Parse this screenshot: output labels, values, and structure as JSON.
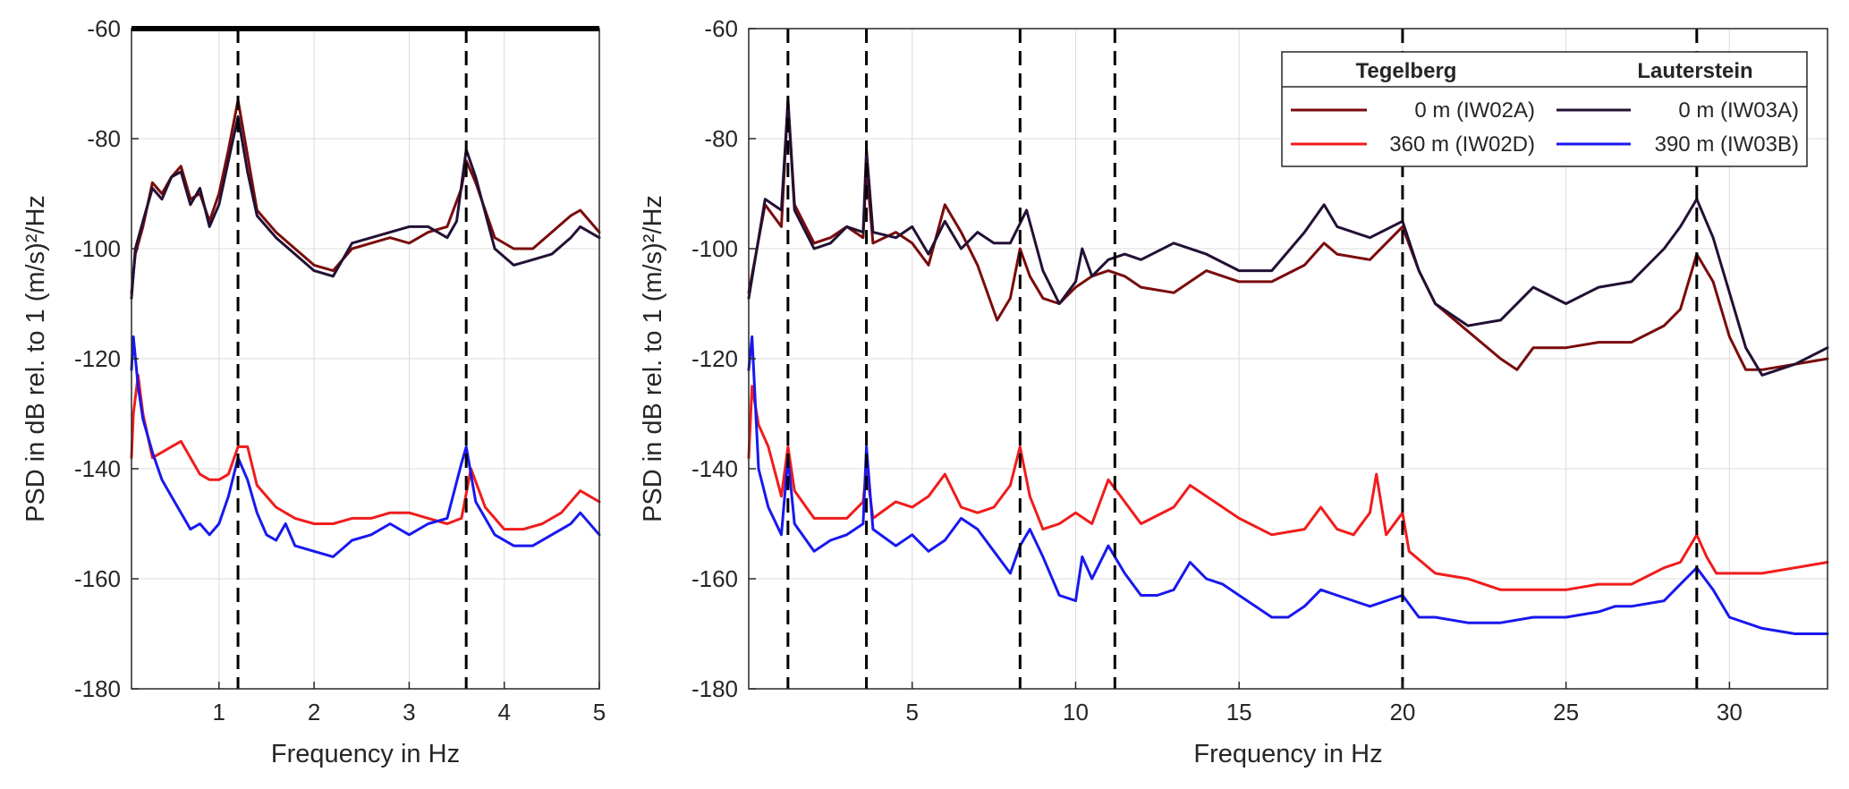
{
  "chart_data": [
    {
      "type": "line",
      "xlabel": "Frequency in Hz",
      "ylabel": "PSD in dB rel. to 1 (m/s)²/Hz",
      "xlim": [
        0.08,
        5
      ],
      "ylim": [
        -180,
        -60
      ],
      "xticks": [
        1,
        2,
        3,
        4,
        5
      ],
      "yticks": [
        -180,
        -160,
        -140,
        -120,
        -100,
        -80,
        -60
      ],
      "grid": true,
      "vlines": [
        1.2,
        3.6
      ],
      "series": [
        {
          "key": "IW02A",
          "color": "#7a0c0c",
          "x": [
            0.08,
            0.12,
            0.2,
            0.3,
            0.4,
            0.5,
            0.6,
            0.7,
            0.8,
            0.9,
            1.0,
            1.1,
            1.2,
            1.3,
            1.4,
            1.6,
            1.8,
            2.0,
            2.2,
            2.4,
            2.6,
            2.8,
            3.0,
            3.2,
            3.4,
            3.55,
            3.6,
            3.7,
            3.9,
            4.1,
            4.3,
            4.5,
            4.7,
            4.8,
            5.0
          ],
          "y": [
            -108,
            -101,
            -96,
            -88,
            -90,
            -87,
            -85,
            -91,
            -90,
            -95,
            -90,
            -82,
            -73,
            -83,
            -93,
            -97,
            -100,
            -103,
            -104,
            -100,
            -99,
            -98,
            -99,
            -97,
            -96,
            -89,
            -84,
            -88,
            -98,
            -100,
            -100,
            -97,
            -94,
            -93,
            -97
          ]
        },
        {
          "key": "IW03A",
          "color": "#231034",
          "x": [
            0.08,
            0.12,
            0.2,
            0.3,
            0.4,
            0.5,
            0.6,
            0.7,
            0.8,
            0.9,
            1.0,
            1.1,
            1.2,
            1.3,
            1.4,
            1.6,
            1.8,
            2.0,
            2.2,
            2.4,
            2.6,
            2.8,
            3.0,
            3.2,
            3.4,
            3.5,
            3.6,
            3.7,
            3.9,
            4.1,
            4.3,
            4.5,
            4.7,
            4.8,
            5.0
          ],
          "y": [
            -109,
            -100,
            -95,
            -89,
            -91,
            -87,
            -86,
            -92,
            -89,
            -96,
            -92,
            -84,
            -76,
            -86,
            -94,
            -98,
            -101,
            -104,
            -105,
            -99,
            -98,
            -97,
            -96,
            -96,
            -98,
            -95,
            -82,
            -87,
            -100,
            -103,
            -102,
            -101,
            -98,
            -96,
            -98
          ]
        },
        {
          "key": "IW02D",
          "color": "#f01c1c",
          "x": [
            0.08,
            0.1,
            0.15,
            0.2,
            0.3,
            0.4,
            0.5,
            0.6,
            0.7,
            0.8,
            0.9,
            1.0,
            1.1,
            1.2,
            1.3,
            1.4,
            1.6,
            1.8,
            2.0,
            2.2,
            2.4,
            2.6,
            2.8,
            3.0,
            3.2,
            3.4,
            3.55,
            3.65,
            3.8,
            4.0,
            4.2,
            4.4,
            4.6,
            4.8,
            5.0
          ],
          "y": [
            -138,
            -130,
            -123,
            -130,
            -138,
            -137,
            -136,
            -135,
            -138,
            -141,
            -142,
            -142,
            -141,
            -136,
            -136,
            -143,
            -147,
            -149,
            -150,
            -150,
            -149,
            -149,
            -148,
            -148,
            -149,
            -150,
            -149,
            -140,
            -147,
            -151,
            -151,
            -150,
            -148,
            -144,
            -146
          ]
        },
        {
          "key": "IW03B",
          "color": "#1818ee",
          "x": [
            0.08,
            0.1,
            0.15,
            0.2,
            0.3,
            0.4,
            0.5,
            0.6,
            0.7,
            0.8,
            0.9,
            1.0,
            1.1,
            1.2,
            1.3,
            1.4,
            1.5,
            1.6,
            1.7,
            1.8,
            2.0,
            2.2,
            2.4,
            2.6,
            2.8,
            3.0,
            3.2,
            3.4,
            3.55,
            3.6,
            3.7,
            3.9,
            4.1,
            4.3,
            4.5,
            4.7,
            4.8,
            5.0
          ],
          "y": [
            -122,
            -116,
            -125,
            -131,
            -137,
            -142,
            -145,
            -148,
            -151,
            -150,
            -152,
            -150,
            -145,
            -138,
            -142,
            -148,
            -152,
            -153,
            -150,
            -154,
            -155,
            -156,
            -153,
            -152,
            -150,
            -152,
            -150,
            -149,
            -139,
            -136,
            -146,
            -152,
            -154,
            -154,
            -152,
            -150,
            -148,
            -152
          ]
        }
      ]
    },
    {
      "type": "line",
      "xlabel": "Frequency in Hz",
      "ylabel": "PSD in dB rel. to 1 (m/s)²/Hz",
      "xlim": [
        0,
        33
      ],
      "ylim": [
        -180,
        -60
      ],
      "xticks": [
        5,
        10,
        15,
        20,
        25,
        30
      ],
      "yticks": [
        -180,
        -160,
        -140,
        -120,
        -100,
        -80,
        -60
      ],
      "grid": true,
      "vlines": [
        1.2,
        3.6,
        8.3,
        11.2,
        20.0,
        29.0
      ],
      "series": [
        {
          "key": "IW02A",
          "color": "#7a0c0c",
          "x": [
            0,
            0.5,
            1.0,
            1.2,
            1.4,
            2.0,
            2.5,
            3.0,
            3.5,
            3.6,
            3.8,
            4.5,
            5.0,
            5.5,
            6.0,
            6.5,
            7.0,
            7.3,
            7.6,
            8.0,
            8.3,
            8.6,
            9.0,
            9.5,
            10.0,
            10.5,
            11.0,
            11.5,
            12.0,
            13.0,
            14.0,
            15.0,
            16.0,
            17.0,
            17.6,
            18.0,
            19.0,
            20.0,
            20.5,
            21.0,
            22.0,
            23.0,
            23.5,
            24.0,
            25.0,
            26.0,
            27.0,
            28.0,
            28.5,
            29.0,
            29.5,
            30.0,
            30.5,
            31.0,
            32.0,
            33.0
          ],
          "y": [
            -108,
            -92,
            -96,
            -73,
            -92,
            -99,
            -98,
            -96,
            -98,
            -85,
            -99,
            -97,
            -99,
            -103,
            -92,
            -97,
            -103,
            -108,
            -113,
            -109,
            -100,
            -105,
            -109,
            -110,
            -107,
            -105,
            -104,
            -105,
            -107,
            -108,
            -104,
            -106,
            -106,
            -103,
            -99,
            -101,
            -102,
            -96,
            -104,
            -110,
            -115,
            -120,
            -122,
            -118,
            -118,
            -117,
            -117,
            -114,
            -111,
            -101,
            -106,
            -116,
            -122,
            -122,
            -121,
            -120
          ]
        },
        {
          "key": "IW03A",
          "color": "#231034",
          "x": [
            0,
            0.5,
            1.0,
            1.2,
            1.4,
            2.0,
            2.5,
            3.0,
            3.5,
            3.6,
            3.8,
            4.5,
            5.0,
            5.5,
            6.0,
            6.5,
            7.0,
            7.5,
            8.0,
            8.5,
            9.0,
            9.5,
            10.0,
            10.2,
            10.5,
            11.0,
            11.5,
            12.0,
            13.0,
            14.0,
            15.0,
            16.0,
            17.0,
            17.6,
            18.0,
            19.0,
            20.0,
            20.5,
            21.0,
            22.0,
            23.0,
            24.0,
            25.0,
            26.0,
            27.0,
            28.0,
            28.5,
            29.0,
            29.5,
            30.0,
            30.5,
            31.0,
            32.0,
            33.0
          ],
          "y": [
            -109,
            -91,
            -93,
            -73,
            -93,
            -100,
            -99,
            -96,
            -97,
            -82,
            -97,
            -98,
            -96,
            -101,
            -95,
            -100,
            -97,
            -99,
            -99,
            -93,
            -104,
            -110,
            -106,
            -100,
            -105,
            -102,
            -101,
            -102,
            -99,
            -101,
            -104,
            -104,
            -97,
            -92,
            -96,
            -98,
            -95,
            -104,
            -110,
            -114,
            -113,
            -107,
            -110,
            -107,
            -106,
            -100,
            -96,
            -91,
            -98,
            -108,
            -118,
            -123,
            -121,
            -118
          ]
        },
        {
          "key": "IW02D",
          "color": "#f01c1c",
          "x": [
            0,
            0.1,
            0.3,
            0.6,
            1.0,
            1.2,
            1.4,
            2.0,
            2.5,
            3.0,
            3.5,
            3.6,
            3.8,
            4.5,
            5.0,
            5.5,
            6.0,
            6.5,
            7.0,
            7.5,
            8.0,
            8.3,
            8.6,
            9.0,
            9.5,
            10.0,
            10.5,
            11.0,
            11.5,
            12.0,
            13.0,
            13.5,
            14.0,
            15.0,
            16.0,
            17.0,
            17.5,
            18.0,
            18.5,
            19.0,
            19.2,
            19.5,
            20.0,
            20.2,
            21.0,
            22.0,
            23.0,
            24.0,
            25.0,
            26.0,
            27.0,
            28.0,
            28.5,
            29.0,
            29.3,
            29.6,
            30.0,
            31.0,
            32.0,
            33.0
          ],
          "y": [
            -138,
            -125,
            -132,
            -136,
            -145,
            -136,
            -144,
            -149,
            -149,
            -149,
            -146,
            -140,
            -149,
            -146,
            -147,
            -145,
            -141,
            -147,
            -148,
            -147,
            -143,
            -136,
            -145,
            -151,
            -150,
            -148,
            -150,
            -142,
            -146,
            -150,
            -147,
            -143,
            -145,
            -149,
            -152,
            -151,
            -147,
            -151,
            -152,
            -148,
            -141,
            -152,
            -148,
            -155,
            -159,
            -160,
            -162,
            -162,
            -162,
            -161,
            -161,
            -158,
            -157,
            -152,
            -156,
            -159,
            -159,
            -159,
            -158,
            -157
          ]
        },
        {
          "key": "IW03B",
          "color": "#1818ee",
          "x": [
            0,
            0.1,
            0.3,
            0.6,
            1.0,
            1.2,
            1.4,
            2.0,
            2.5,
            3.0,
            3.5,
            3.6,
            3.8,
            4.5,
            5.0,
            5.5,
            6.0,
            6.5,
            7.0,
            7.5,
            8.0,
            8.3,
            8.6,
            9.0,
            9.5,
            10.0,
            10.2,
            10.5,
            11.0,
            11.5,
            12.0,
            12.5,
            13.0,
            13.5,
            14.0,
            14.5,
            15.0,
            15.5,
            16.0,
            16.5,
            17.0,
            17.5,
            18.0,
            19.0,
            20.0,
            20.5,
            21.0,
            22.0,
            23.0,
            24.0,
            25.0,
            26.0,
            26.5,
            27.0,
            28.0,
            28.5,
            29.0,
            29.5,
            30.0,
            31.0,
            32.0,
            33.0
          ],
          "y": [
            -122,
            -116,
            -140,
            -147,
            -152,
            -138,
            -150,
            -155,
            -153,
            -152,
            -150,
            -136,
            -151,
            -154,
            -152,
            -155,
            -153,
            -149,
            -151,
            -155,
            -159,
            -154,
            -151,
            -156,
            -163,
            -164,
            -156,
            -160,
            -154,
            -159,
            -163,
            -163,
            -162,
            -157,
            -160,
            -161,
            -163,
            -165,
            -167,
            -167,
            -165,
            -162,
            -163,
            -165,
            -163,
            -167,
            -167,
            -168,
            -168,
            -167,
            -167,
            -166,
            -165,
            -165,
            -164,
            -161,
            -158,
            -162,
            -167,
            -169,
            -170,
            -170
          ]
        }
      ],
      "legend": {
        "position": "top-right",
        "headers": [
          "Tegelberg",
          "Lauterstein"
        ],
        "entries": [
          {
            "key": "IW02A",
            "label": "0 m (IW02A)",
            "color": "#7a0c0c"
          },
          {
            "key": "IW03A",
            "label": "0 m (IW03A)",
            "color": "#231034"
          },
          {
            "key": "IW02D",
            "label": "360 m (IW02D)",
            "color": "#f01c1c"
          },
          {
            "key": "IW03B",
            "label": "390 m (IW03B)",
            "color": "#1818ee"
          }
        ]
      }
    }
  ]
}
